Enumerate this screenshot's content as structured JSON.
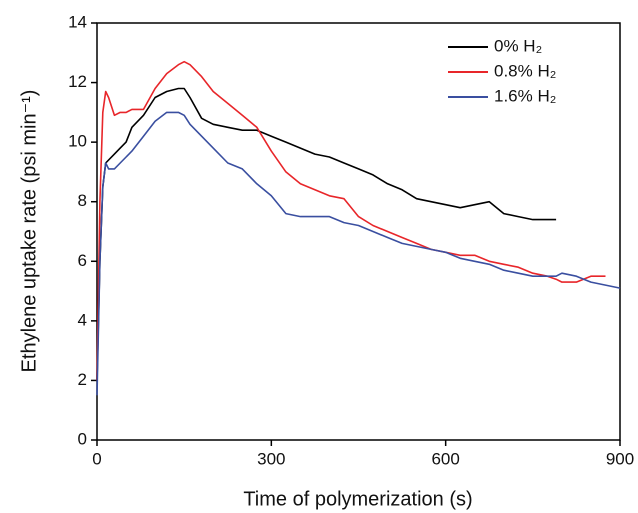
{
  "chart_data": {
    "type": "line",
    "xlabel": "Time of polymerization (s)",
    "ylabel": "Ethylene uptake rate (psi min⁻¹)",
    "x": [
      0,
      5,
      10,
      15,
      20,
      30,
      40,
      50,
      60,
      80,
      100,
      120,
      140,
      150,
      160,
      180,
      200,
      225,
      250,
      275,
      300,
      325,
      350,
      375,
      400,
      425,
      450,
      475,
      500,
      525,
      550,
      575,
      600,
      625,
      650,
      675,
      700,
      725,
      750,
      775,
      790,
      800,
      825,
      850,
      875,
      900
    ],
    "series": [
      {
        "name": "0% H₂",
        "color": "#000000",
        "values": [
          2,
          6,
          8.5,
          9.3,
          9.4,
          9.6,
          9.8,
          10.0,
          10.5,
          10.9,
          11.5,
          11.7,
          11.8,
          11.8,
          11.5,
          10.8,
          10.6,
          10.5,
          10.4,
          10.4,
          10.2,
          10.0,
          9.8,
          9.6,
          9.5,
          9.3,
          9.1,
          8.9,
          8.6,
          8.4,
          8.1,
          8.0,
          7.9,
          7.8,
          7.9,
          8.0,
          7.6,
          7.5,
          7.4,
          7.4,
          7.4,
          null,
          null,
          null,
          null,
          null
        ]
      },
      {
        "name": "0.8% H₂",
        "color": "#e8262a",
        "values": [
          2,
          8,
          11.0,
          11.7,
          11.5,
          10.9,
          11.0,
          11.0,
          11.1,
          11.1,
          11.8,
          12.3,
          12.6,
          12.7,
          12.6,
          12.2,
          11.7,
          11.3,
          10.9,
          10.5,
          9.7,
          9.0,
          8.6,
          8.4,
          8.2,
          8.1,
          7.5,
          7.2,
          7.0,
          6.8,
          6.6,
          6.4,
          6.3,
          6.2,
          6.2,
          6.0,
          5.9,
          5.8,
          5.6,
          5.5,
          5.4,
          5.3,
          5.3,
          5.5,
          5.5,
          null
        ]
      },
      {
        "name": "1.6% H₂",
        "color": "#3a4fa0",
        "values": [
          1.5,
          6,
          8.5,
          9.3,
          9.1,
          9.1,
          9.3,
          9.5,
          9.7,
          10.2,
          10.7,
          11.0,
          11.0,
          10.9,
          10.6,
          10.2,
          9.8,
          9.3,
          9.1,
          8.6,
          8.2,
          7.6,
          7.5,
          7.5,
          7.5,
          7.3,
          7.2,
          7.0,
          6.8,
          6.6,
          6.5,
          6.4,
          6.3,
          6.1,
          6.0,
          5.9,
          5.7,
          5.6,
          5.5,
          5.5,
          5.5,
          5.6,
          5.5,
          5.3,
          5.2,
          5.1
        ]
      }
    ],
    "xlim": [
      0,
      900
    ],
    "xticks": [
      0,
      300,
      600,
      900
    ],
    "ylim": [
      0,
      14
    ],
    "yticks": [
      0,
      2,
      4,
      6,
      8,
      10,
      12,
      14
    ],
    "legend": "upper right"
  }
}
